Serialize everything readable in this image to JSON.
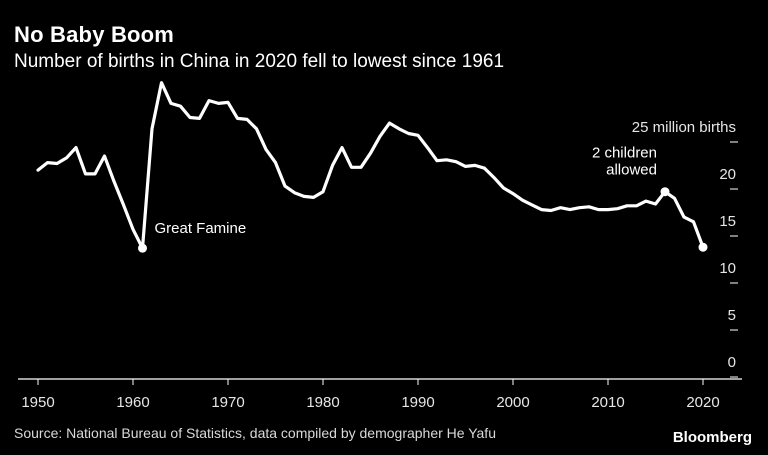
{
  "header": {
    "title": "No Baby Boom",
    "subtitle": "Number of births in China in 2020 fell to lowest since 1961"
  },
  "footer": {
    "source": "Source: National Bureau of Statistics, data compiled by demographer He Yafu",
    "brand": "Bloomberg"
  },
  "colors": {
    "background": "#000000",
    "line": "#ffffff",
    "axis": "#ffffff"
  },
  "chart_data": {
    "type": "line",
    "title": "No Baby Boom",
    "subtitle": "Number of births in China in 2020 fell to lowest since 1961",
    "ylabel": "25 million births",
    "xlim": [
      1949,
      2022
    ],
    "ylim": [
      0,
      25
    ],
    "x_ticks": [
      1950,
      1960,
      1970,
      1980,
      1990,
      2000,
      2010,
      2020
    ],
    "x_tick_labels": [
      "1950",
      "1960",
      "1970",
      "1980",
      "1990",
      "2000",
      "2010",
      "2020"
    ],
    "y_ticks": [
      0,
      5,
      10,
      15,
      20,
      25
    ],
    "y_tick_labels": [
      "0",
      "5",
      "10",
      "15",
      "20",
      "25 million births"
    ],
    "y_axis_side": "right",
    "grid": false,
    "series": [
      {
        "x": [
          1950,
          1951,
          1952,
          1953,
          1954,
          1955,
          1956,
          1957,
          1958,
          1959,
          1960,
          1961,
          1962,
          1963,
          1964,
          1965,
          1966,
          1967,
          1968,
          1969,
          1970,
          1971,
          1972,
          1973,
          1974,
          1975,
          1976,
          1977,
          1978,
          1979,
          1980,
          1981,
          1982,
          1983,
          1984,
          1985,
          1986,
          1987,
          1988,
          1989,
          1990,
          1991,
          1992,
          1993,
          1994,
          1995,
          1996,
          1997,
          1998,
          1999,
          2000,
          2001,
          2002,
          2003,
          2004,
          2005,
          2006,
          2007,
          2008,
          2009,
          2010,
          2011,
          2012,
          2013,
          2014,
          2015,
          2016,
          2017,
          2018,
          2019,
          2020
        ],
        "y": [
          20.2,
          21.0,
          20.9,
          21.5,
          22.6,
          19.8,
          19.8,
          21.7,
          19.0,
          16.5,
          13.9,
          11.9,
          24.6,
          29.5,
          27.3,
          27.0,
          25.8,
          25.7,
          27.6,
          27.3,
          27.4,
          25.7,
          25.6,
          24.6,
          22.4,
          21.0,
          18.5,
          17.8,
          17.4,
          17.3,
          17.9,
          20.7,
          22.6,
          20.5,
          20.5,
          22.0,
          23.8,
          25.2,
          24.6,
          24.1,
          23.9,
          22.6,
          21.2,
          21.3,
          21.1,
          20.6,
          20.7,
          20.4,
          19.4,
          18.3,
          17.7,
          17.0,
          16.5,
          16.0,
          15.9,
          16.2,
          16.0,
          16.2,
          16.3,
          16.0,
          16.0,
          16.1,
          16.4,
          16.4,
          16.9,
          16.6,
          17.9,
          17.2,
          15.2,
          14.7,
          12.0
        ]
      }
    ],
    "annotations": [
      {
        "text": "Great Famine",
        "x": 1961,
        "y": 11.9
      },
      {
        "text_lines": [
          "2 children",
          "allowed"
        ],
        "x": 2016,
        "y": 17.9
      },
      {
        "marker_only": true,
        "x": 2020,
        "y": 12.0
      }
    ]
  }
}
